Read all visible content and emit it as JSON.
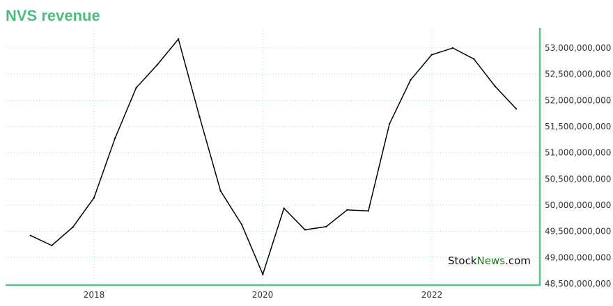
{
  "chart_data": {
    "type": "line",
    "title": "NVS revenue",
    "xlabel": "",
    "ylabel": "",
    "x_tick_labels": [
      "2018",
      "2020",
      "2022"
    ],
    "y_tick_labels": [
      "48,500,000,000",
      "49,000,000,000",
      "49,500,000,000",
      "50,000,000,000",
      "50,500,000,000",
      "51,000,000,000",
      "51,500,000,000",
      "52,000,000,000",
      "52,500,000,000",
      "53,000,000,000"
    ],
    "ylim": [
      48500000000,
      53000000000
    ],
    "grid": true,
    "series": [
      {
        "values": [
          49420000000,
          49230000000,
          49580000000,
          50140000000,
          51280000000,
          52240000000,
          52680000000,
          53170000000,
          51690000000,
          50270000000,
          49630000000,
          48680000000,
          49940000000,
          49530000000,
          49590000000,
          49910000000,
          49890000000,
          51550000000,
          52390000000,
          52870000000,
          53000000000,
          52790000000,
          52270000000,
          51840000000
        ]
      }
    ]
  },
  "watermark": {
    "part1": "Stock",
    "part2": "News",
    "part3": ".com"
  },
  "colors": {
    "title": "#4dbd7e",
    "axis": "#5bbf86",
    "grid": "#b4dcc6",
    "line": "#000000"
  }
}
